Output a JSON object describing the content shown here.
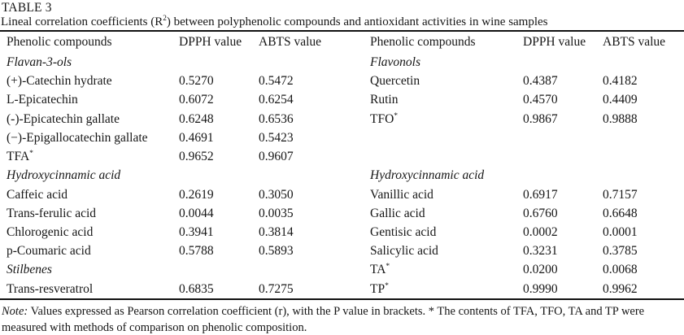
{
  "table": {
    "label": "TABLE 3",
    "caption": {
      "pre": "Lineal correlation coefficients (R",
      "sup": "2",
      "post": ") between polyphenolic compounds and antioxidant activities in wine samples"
    },
    "columns": [
      "Phenolic compounds",
      "DPPH value",
      "ABTS value",
      "Phenolic compounds",
      "DPPH value",
      "ABTS value"
    ],
    "rows": [
      {
        "cells": [
          {
            "text": "Flavan-3-ols",
            "italic": true
          },
          {
            "text": ""
          },
          {
            "text": ""
          },
          {
            "text": "Flavonols",
            "italic": true
          },
          {
            "text": ""
          },
          {
            "text": ""
          }
        ]
      },
      {
        "cells": [
          {
            "text": "(+)-Catechin hydrate"
          },
          {
            "text": "0.5270"
          },
          {
            "text": "0.5472"
          },
          {
            "text": "Quercetin"
          },
          {
            "text": "0.4387"
          },
          {
            "text": "0.4182"
          }
        ]
      },
      {
        "cells": [
          {
            "text": "L-Epicatechin"
          },
          {
            "text": "0.6072"
          },
          {
            "text": "0.6254"
          },
          {
            "text": "Rutin"
          },
          {
            "text": "0.4570"
          },
          {
            "text": "0.4409"
          }
        ]
      },
      {
        "cells": [
          {
            "text": "(-)-Epicatechin gallate"
          },
          {
            "text": "0.6248"
          },
          {
            "text": "0.6536"
          },
          {
            "text": "TFO",
            "sup": "*"
          },
          {
            "text": "0.9867"
          },
          {
            "text": "0.9888"
          }
        ]
      },
      {
        "cells": [
          {
            "text": "(−)-Epigallocatechin gallate"
          },
          {
            "text": "0.4691"
          },
          {
            "text": "0.5423"
          },
          {
            "text": ""
          },
          {
            "text": ""
          },
          {
            "text": ""
          }
        ]
      },
      {
        "cells": [
          {
            "text": "TFA",
            "sup": "*"
          },
          {
            "text": "0.9652"
          },
          {
            "text": "0.9607"
          },
          {
            "text": ""
          },
          {
            "text": ""
          },
          {
            "text": ""
          }
        ]
      },
      {
        "cells": [
          {
            "text": "Hydroxycinnamic acid",
            "italic": true
          },
          {
            "text": ""
          },
          {
            "text": ""
          },
          {
            "text": "Hydroxycinnamic acid",
            "italic": true
          },
          {
            "text": ""
          },
          {
            "text": ""
          }
        ]
      },
      {
        "cells": [
          {
            "text": "Caffeic acid"
          },
          {
            "text": "0.2619"
          },
          {
            "text": "0.3050"
          },
          {
            "text": "Vanillic acid"
          },
          {
            "text": "0.6917"
          },
          {
            "text": "0.7157"
          }
        ]
      },
      {
        "cells": [
          {
            "text": "Trans-ferulic acid"
          },
          {
            "text": "0.0044"
          },
          {
            "text": "0.0035"
          },
          {
            "text": "Gallic acid"
          },
          {
            "text": "0.6760"
          },
          {
            "text": "0.6648"
          }
        ]
      },
      {
        "cells": [
          {
            "text": "Chlorogenic acid"
          },
          {
            "text": "0.3941"
          },
          {
            "text": "0.3814"
          },
          {
            "text": "Gentisic acid"
          },
          {
            "text": "0.0002"
          },
          {
            "text": "0.0001"
          }
        ]
      },
      {
        "cells": [
          {
            "text": "p-Coumaric acid"
          },
          {
            "text": "0.5788"
          },
          {
            "text": "0.5893"
          },
          {
            "text": "Salicylic acid"
          },
          {
            "text": "0.3231"
          },
          {
            "text": "0.3785"
          }
        ]
      },
      {
        "cells": [
          {
            "text": "Stilbenes",
            "italic": true
          },
          {
            "text": ""
          },
          {
            "text": ""
          },
          {
            "text": "TA",
            "sup": "*"
          },
          {
            "text": "0.0200"
          },
          {
            "text": "0.0068"
          }
        ]
      },
      {
        "cells": [
          {
            "text": "Trans-resveratrol"
          },
          {
            "text": "0.6835"
          },
          {
            "text": "0.7275"
          },
          {
            "text": "TP",
            "sup": "*"
          },
          {
            "text": "0.9990"
          },
          {
            "text": "0.9962"
          }
        ]
      }
    ]
  },
  "note": {
    "label": "Note:",
    "text": " Values expressed as Pearson correlation coefficient (r), with the P value in brackets. *  The contents of TFA, TFO, TA and TP were measured with methods of comparison on phenolic composition."
  },
  "colors": {
    "text": "#161616",
    "background": "#ffffff",
    "rule": "#111111"
  }
}
